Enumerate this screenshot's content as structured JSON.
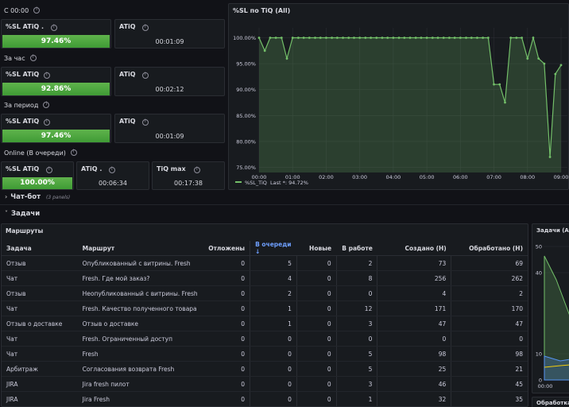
{
  "section1_title": "С 00:00",
  "section2_title": "За час",
  "section3_title": "За период",
  "section4_title": "Online (В очереди)",
  "row1": {
    "sl_title": "%SL ATiQ .",
    "sl_value": "97.46%",
    "sl_fill": 1.0,
    "atiq_title": "ATiQ",
    "atiq_value": "00:01:09"
  },
  "row2": {
    "sl_title": "%SL ATiQ",
    "sl_value": "92.86%",
    "sl_fill": 1.0,
    "atiq_title": "ATiQ",
    "atiq_value": "00:02:12"
  },
  "row3": {
    "sl_title": "%SL ATiQ",
    "sl_value": "97.46%",
    "sl_fill": 1.0,
    "atiq_title": "ATiQ",
    "atiq_value": "00:01:09"
  },
  "row4": {
    "sl_title": "%SL ATiQ",
    "sl_value": "100.00%",
    "sl_fill": 1.0,
    "atiq_title": "ATiQ .",
    "atiq_value": "00:06:34",
    "tiq_title": "TiQ max",
    "tiq_value": "00:17:38"
  },
  "chart_panel": {
    "title": "%SL по TiQ (All)",
    "legend_label": "%SL_TiQ",
    "legend_last": "Last *: 94.72%"
  },
  "chart_data": {
    "type": "line",
    "y_ticks": [
      "100.00%",
      "95.00%",
      "90.00%",
      "85.00%",
      "80.00%",
      "75.00%"
    ],
    "x_ticks": [
      "00:00",
      "01:00",
      "02:00",
      "03:00",
      "04:00",
      "05:00",
      "06:00",
      "07:00",
      "08:00",
      "09:00"
    ],
    "ylim": [
      74,
      101
    ],
    "series": [
      {
        "name": "%SL_TiQ",
        "x": [
          0,
          0.17,
          0.33,
          0.5,
          0.67,
          0.83,
          1.0,
          1.17,
          1.33,
          1.5,
          1.67,
          1.83,
          2.0,
          2.17,
          2.33,
          2.5,
          2.67,
          2.83,
          3.0,
          3.17,
          3.33,
          3.5,
          3.67,
          3.83,
          4.0,
          4.17,
          4.33,
          4.5,
          4.67,
          4.83,
          5.0,
          5.17,
          5.33,
          5.5,
          5.67,
          5.83,
          6.0,
          6.17,
          6.33,
          6.5,
          6.67,
          6.83,
          7.0,
          7.17,
          7.33,
          7.5,
          7.67,
          7.83,
          8.0,
          8.17,
          8.33,
          8.5,
          8.67,
          8.83,
          9.0
        ],
        "values": [
          100,
          97.5,
          100,
          100,
          100,
          96,
          100,
          100,
          100,
          100,
          100,
          100,
          100,
          100,
          100,
          100,
          100,
          100,
          100,
          100,
          100,
          100,
          100,
          100,
          100,
          100,
          100,
          100,
          100,
          100,
          100,
          100,
          100,
          100,
          100,
          100,
          100,
          100,
          100,
          100,
          100,
          100,
          91,
          91,
          87.5,
          100,
          100,
          100,
          96,
          100,
          96,
          95,
          77,
          93,
          94.72
        ]
      }
    ]
  },
  "chatbot": {
    "title": "Чат-бот",
    "sub": "(3 panels)"
  },
  "tasks_title": "Задачи",
  "routes_panel": {
    "title": "Маршруты"
  },
  "table": {
    "headers": [
      "Задача",
      "Маршрут",
      "Отложены",
      "В очереди ↓",
      "Новые",
      "В работе",
      "Создано (Н)",
      "Обработано (Н)"
    ],
    "rows": [
      [
        "Отзыв",
        "Опубликованный с витрины. Fresh",
        "0",
        "5",
        "0",
        "2",
        "73",
        "69"
      ],
      [
        "Чат",
        "Fresh. Где мой заказ?",
        "0",
        "4",
        "0",
        "8",
        "256",
        "262"
      ],
      [
        "Отзыв",
        "Неопубликованный с витрины. Fresh",
        "0",
        "2",
        "0",
        "0",
        "4",
        "2"
      ],
      [
        "Чат",
        "Fresh. Качество полученного товара",
        "0",
        "1",
        "0",
        "12",
        "171",
        "170"
      ],
      [
        "Отзыв о доставке",
        "Отзыв о доставке",
        "0",
        "1",
        "0",
        "3",
        "47",
        "47"
      ],
      [
        "Чат",
        "Fresh. Ограниченный доступ",
        "0",
        "0",
        "0",
        "0",
        "0",
        "0"
      ],
      [
        "Чат",
        "Fresh",
        "0",
        "0",
        "0",
        "5",
        "98",
        "98"
      ],
      [
        "Арбитраж",
        "Согласования возврата Fresh",
        "0",
        "0",
        "0",
        "5",
        "25",
        "21"
      ],
      [
        "JIRA",
        "Jira fresh пилот",
        "0",
        "0",
        "0",
        "3",
        "46",
        "45"
      ],
      [
        "JIRA",
        "Jira Fresh",
        "0",
        "0",
        "0",
        "1",
        "32",
        "35"
      ]
    ]
  },
  "side_panel": {
    "title": "Задачи (All)",
    "y_ticks": [
      "50",
      "40",
      "10",
      "0"
    ],
    "x_tick": "00:00",
    "bottom_title": "Обработка"
  }
}
